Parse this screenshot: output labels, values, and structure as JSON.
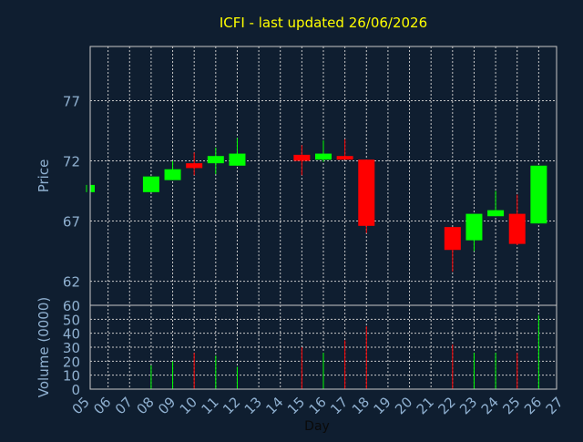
{
  "chart_data": {
    "type": "candlestick",
    "title": "ICFI - last updated 26/06/2026",
    "xlabel": "Day",
    "colors": {
      "background": "#0f1e30",
      "title": "#ffff00",
      "axis_text": "#8fb0d0",
      "frame": "#c8c8c8",
      "grid": "#c8c8c8",
      "up": "#00ff00",
      "down": "#ff0000"
    },
    "price_panel": {
      "ylabel": "Price",
      "ylim": [
        60,
        81.5
      ],
      "yticks": [
        62,
        67,
        72,
        77
      ],
      "grid": true
    },
    "volume_panel": {
      "ylabel": "Volume (0000)",
      "ylim": [
        0,
        60
      ],
      "yticks": [
        0,
        10,
        20,
        30,
        40,
        50,
        60
      ],
      "grid": true
    },
    "x_ticks": [
      "05",
      "06",
      "07",
      "08",
      "09",
      "10",
      "11",
      "12",
      "13",
      "14",
      "15",
      "16",
      "17",
      "18",
      "19",
      "20",
      "21",
      "22",
      "23",
      "24",
      "25",
      "26",
      "27"
    ],
    "candles": [
      {
        "day": "05",
        "open": 69.4,
        "close": 70.0,
        "high": 70.0,
        "low": 69.4,
        "volume": 0
      },
      {
        "day": "08",
        "open": 69.4,
        "close": 70.7,
        "high": 70.7,
        "low": 69.4,
        "volume": 17
      },
      {
        "day": "09",
        "open": 70.4,
        "close": 71.3,
        "high": 72.0,
        "low": 70.4,
        "volume": 20
      },
      {
        "day": "10",
        "open": 71.8,
        "close": 71.4,
        "high": 72.7,
        "low": 70.8,
        "volume": 26
      },
      {
        "day": "11",
        "open": 71.8,
        "close": 72.4,
        "high": 73.1,
        "low": 70.9,
        "volume": 24
      },
      {
        "day": "12",
        "open": 71.6,
        "close": 72.6,
        "high": 73.9,
        "low": 71.6,
        "volume": 16
      },
      {
        "day": "15",
        "open": 72.5,
        "close": 72.0,
        "high": 73.3,
        "low": 70.8,
        "volume": 30
      },
      {
        "day": "16",
        "open": 72.1,
        "close": 72.6,
        "high": 73.7,
        "low": 71.9,
        "volume": 26
      },
      {
        "day": "17",
        "open": 72.4,
        "close": 72.1,
        "high": 73.8,
        "low": 72.1,
        "volume": 35
      },
      {
        "day": "18",
        "open": 72.1,
        "close": 66.6,
        "high": 72.1,
        "low": 66.0,
        "volume": 45
      },
      {
        "day": "22",
        "open": 66.5,
        "close": 64.6,
        "high": 66.5,
        "low": 62.8,
        "volume": 32
      },
      {
        "day": "23",
        "open": 65.4,
        "close": 67.6,
        "high": 67.6,
        "low": 64.5,
        "volume": 26
      },
      {
        "day": "24",
        "open": 67.4,
        "close": 67.9,
        "high": 69.5,
        "low": 67.4,
        "volume": 26
      },
      {
        "day": "25",
        "open": 67.6,
        "close": 65.1,
        "high": 69.2,
        "low": 65.0,
        "volume": 26
      },
      {
        "day": "26",
        "open": 66.8,
        "close": 71.6,
        "high": 71.6,
        "low": 66.8,
        "volume": 53
      }
    ]
  }
}
